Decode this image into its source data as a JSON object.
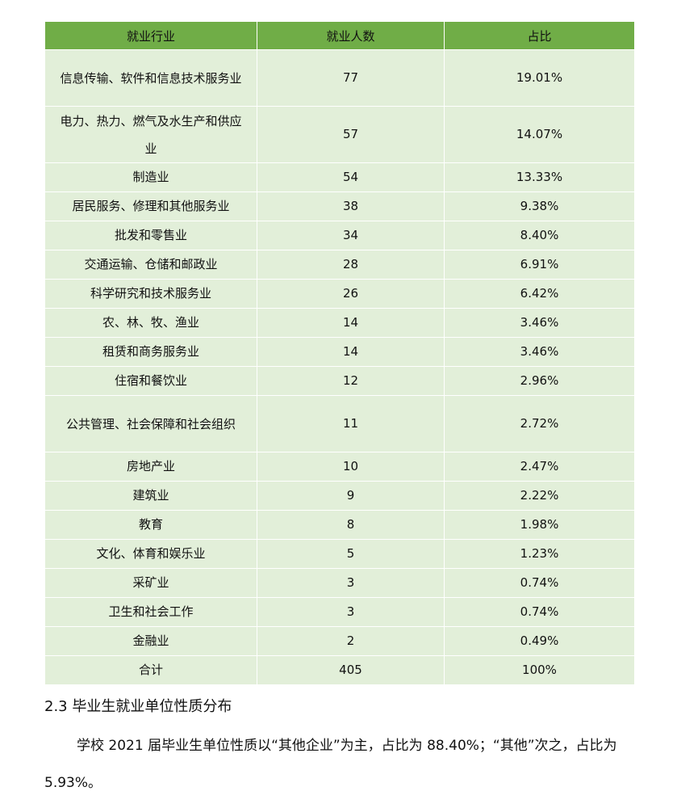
{
  "table": {
    "headers": [
      "就业行业",
      "就业人数",
      "占比"
    ],
    "rows": [
      [
        "信息传输、软件和信息技术服务业",
        "77",
        "19.01%"
      ],
      [
        "电力、热力、燃气及水生产和供应业",
        "57",
        "14.07%"
      ],
      [
        "制造业",
        "54",
        "13.33%"
      ],
      [
        "居民服务、修理和其他服务业",
        "38",
        "9.38%"
      ],
      [
        "批发和零售业",
        "34",
        "8.40%"
      ],
      [
        "交通运输、仓储和邮政业",
        "28",
        "6.91%"
      ],
      [
        "科学研究和技术服务业",
        "26",
        "6.42%"
      ],
      [
        "农、林、牧、渔业",
        "14",
        "3.46%"
      ],
      [
        "租赁和商务服务业",
        "14",
        "3.46%"
      ],
      [
        "住宿和餐饮业",
        "12",
        "2.96%"
      ],
      [
        "公共管理、社会保障和社会组织",
        "11",
        "2.72%"
      ],
      [
        "房地产业",
        "10",
        "2.47%"
      ],
      [
        "建筑业",
        "9",
        "2.22%"
      ],
      [
        "教育",
        "8",
        "1.98%"
      ],
      [
        "文化、体育和娱乐业",
        "5",
        "1.23%"
      ],
      [
        "采矿业",
        "3",
        "0.74%"
      ],
      [
        "卫生和社会工作",
        "3",
        "0.74%"
      ],
      [
        "金融业",
        "2",
        "0.49%"
      ],
      [
        "合计",
        "405",
        "100%"
      ]
    ],
    "colors": {
      "header": "#70ad47",
      "row": "#e2efd9"
    }
  },
  "section": {
    "heading": "2.3 毕业生就业单位性质分布",
    "paragraph": "学校 2021 届毕业生单位性质以“其他企业”为主，占比为 88.40%；“其他”次之，占比为 5.93%。"
  }
}
